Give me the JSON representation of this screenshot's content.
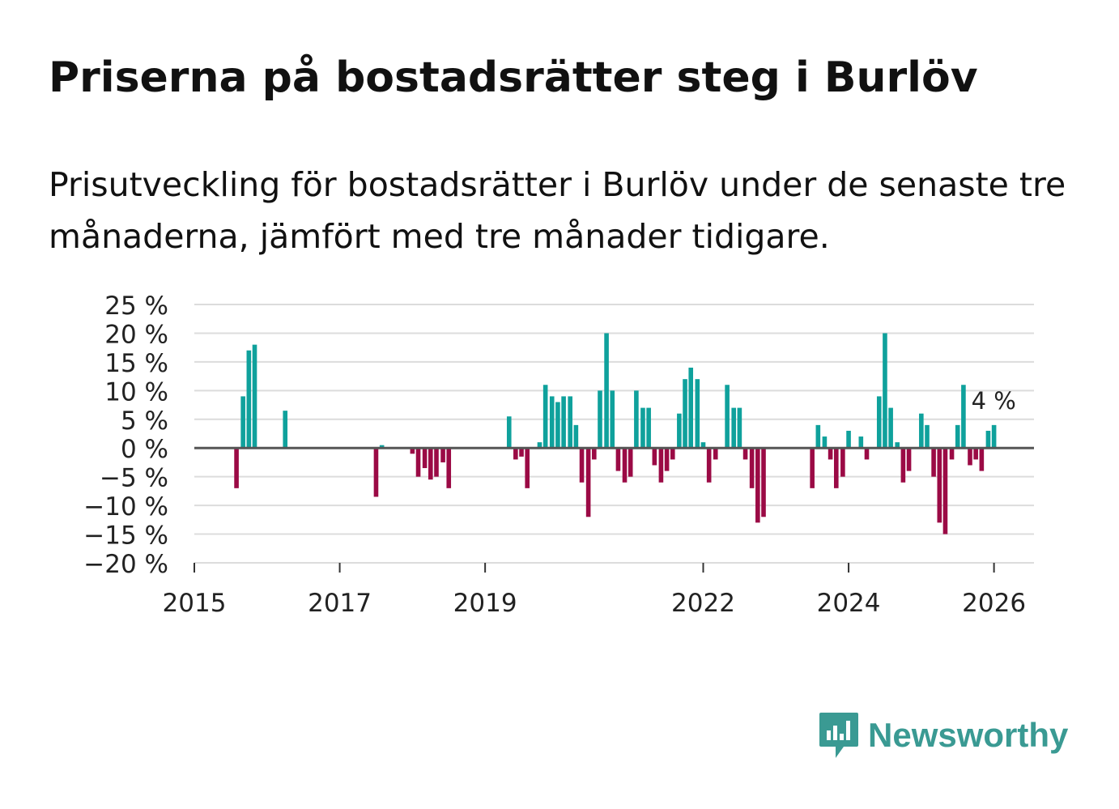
{
  "title": "Priserna på bostadsrätter steg i Burlöv",
  "subtitle": "Prisutveckling för bostadsrätter i Burlöv under de senaste tre månaderna, jämfört med tre månader tidigare.",
  "brand": {
    "name": "Newsworthy",
    "icon": "newsworthy-logo-icon",
    "color": "#3a9a93"
  },
  "colors": {
    "positive": "#0fa19c",
    "negative": "#9b0a45",
    "grid": "#dcdcdc",
    "zero_line": "#555555"
  },
  "chart_data": {
    "type": "bar",
    "title": "Priserna på bostadsrätter steg i Burlöv",
    "xlabel": "",
    "ylabel": "",
    "ylim": [
      -20,
      25
    ],
    "yticks": [
      -20,
      -15,
      -10,
      -5,
      0,
      5,
      10,
      15,
      20,
      25
    ],
    "ytick_labels": [
      "−20 %",
      "−15 %",
      "−10 %",
      "−5 %",
      "0 %",
      "5 %",
      "10 %",
      "15 %",
      "20 %",
      "25 %"
    ],
    "xticks": [
      2015,
      2017,
      2019,
      2022,
      2024,
      2026
    ],
    "xtick_labels": [
      "2015",
      "2017",
      "2019",
      "2022",
      "2024",
      "2026"
    ],
    "xlim": [
      2015.0,
      2026.55
    ],
    "grid": true,
    "annotation": {
      "text": "4 %",
      "x": 2026.0,
      "y": 4
    },
    "series": [
      {
        "name": "Prisutveckling",
        "points": [
          {
            "x": 2015.58,
            "y": -7
          },
          {
            "x": 2015.67,
            "y": 9
          },
          {
            "x": 2015.75,
            "y": 17
          },
          {
            "x": 2015.83,
            "y": 18
          },
          {
            "x": 2016.25,
            "y": 6.5
          },
          {
            "x": 2017.5,
            "y": -8.5
          },
          {
            "x": 2017.58,
            "y": 0.5
          },
          {
            "x": 2018.0,
            "y": -1
          },
          {
            "x": 2018.08,
            "y": -5
          },
          {
            "x": 2018.17,
            "y": -3.5
          },
          {
            "x": 2018.25,
            "y": -5.5
          },
          {
            "x": 2018.33,
            "y": -5
          },
          {
            "x": 2018.42,
            "y": -2.5
          },
          {
            "x": 2018.5,
            "y": -7
          },
          {
            "x": 2019.33,
            "y": 5.5
          },
          {
            "x": 2019.42,
            "y": -2
          },
          {
            "x": 2019.5,
            "y": -1.5
          },
          {
            "x": 2019.58,
            "y": -7
          },
          {
            "x": 2019.75,
            "y": 1
          },
          {
            "x": 2019.83,
            "y": 11
          },
          {
            "x": 2019.92,
            "y": 9
          },
          {
            "x": 2020.0,
            "y": 8
          },
          {
            "x": 2020.08,
            "y": 9
          },
          {
            "x": 2020.17,
            "y": 9
          },
          {
            "x": 2020.25,
            "y": 4
          },
          {
            "x": 2020.33,
            "y": -6
          },
          {
            "x": 2020.42,
            "y": -12
          },
          {
            "x": 2020.5,
            "y": -2
          },
          {
            "x": 2020.58,
            "y": 10
          },
          {
            "x": 2020.67,
            "y": 20
          },
          {
            "x": 2020.75,
            "y": 10
          },
          {
            "x": 2020.83,
            "y": -4
          },
          {
            "x": 2020.92,
            "y": -6
          },
          {
            "x": 2021.0,
            "y": -5
          },
          {
            "x": 2021.08,
            "y": 10
          },
          {
            "x": 2021.17,
            "y": 7
          },
          {
            "x": 2021.25,
            "y": 7
          },
          {
            "x": 2021.33,
            "y": -3
          },
          {
            "x": 2021.42,
            "y": -6
          },
          {
            "x": 2021.5,
            "y": -4
          },
          {
            "x": 2021.58,
            "y": -2
          },
          {
            "x": 2021.67,
            "y": 6
          },
          {
            "x": 2021.75,
            "y": 12
          },
          {
            "x": 2021.83,
            "y": 14
          },
          {
            "x": 2021.92,
            "y": 12
          },
          {
            "x": 2022.0,
            "y": 1
          },
          {
            "x": 2022.08,
            "y": -6
          },
          {
            "x": 2022.17,
            "y": -2
          },
          {
            "x": 2022.33,
            "y": 11
          },
          {
            "x": 2022.42,
            "y": 7
          },
          {
            "x": 2022.5,
            "y": 7
          },
          {
            "x": 2022.58,
            "y": -2
          },
          {
            "x": 2022.67,
            "y": -7
          },
          {
            "x": 2022.75,
            "y": -13
          },
          {
            "x": 2022.83,
            "y": -12
          },
          {
            "x": 2023.5,
            "y": -7
          },
          {
            "x": 2023.58,
            "y": 4
          },
          {
            "x": 2023.67,
            "y": 2
          },
          {
            "x": 2023.75,
            "y": -2
          },
          {
            "x": 2023.83,
            "y": -7
          },
          {
            "x": 2023.92,
            "y": -5
          },
          {
            "x": 2024.0,
            "y": 3
          },
          {
            "x": 2024.17,
            "y": 2
          },
          {
            "x": 2024.25,
            "y": -2
          },
          {
            "x": 2024.42,
            "y": 9
          },
          {
            "x": 2024.5,
            "y": 20
          },
          {
            "x": 2024.58,
            "y": 7
          },
          {
            "x": 2024.67,
            "y": 1
          },
          {
            "x": 2024.75,
            "y": -6
          },
          {
            "x": 2024.83,
            "y": -4
          },
          {
            "x": 2025.0,
            "y": 6
          },
          {
            "x": 2025.08,
            "y": 4
          },
          {
            "x": 2025.17,
            "y": -5
          },
          {
            "x": 2025.25,
            "y": -13
          },
          {
            "x": 2025.33,
            "y": -15
          },
          {
            "x": 2025.42,
            "y": -2
          },
          {
            "x": 2025.5,
            "y": 4
          },
          {
            "x": 2025.58,
            "y": 11
          },
          {
            "x": 2025.67,
            "y": -3
          },
          {
            "x": 2025.75,
            "y": -2
          },
          {
            "x": 2025.83,
            "y": -4
          },
          {
            "x": 2025.92,
            "y": 3
          },
          {
            "x": 2026.0,
            "y": 4
          }
        ]
      }
    ]
  }
}
